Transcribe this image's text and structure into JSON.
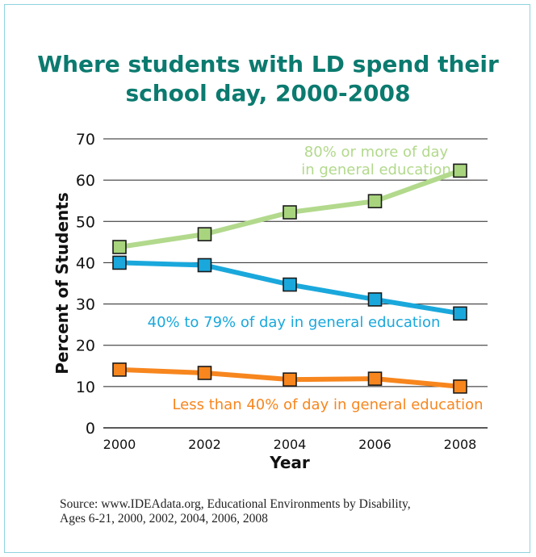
{
  "title_line1": "Where students with LD spend their",
  "title_line2": "school day, 2000-2008",
  "source_line1": "Source: www.IDEAdata.org, Educational Environments by Disability,",
  "source_line2": "Ages 6-21, 2000, 2002, 2004, 2006, 2008",
  "chart_data": {
    "type": "line",
    "xlabel": "Year",
    "ylabel": "Percent of Students",
    "x": [
      2000,
      2002,
      2004,
      2006,
      2008
    ],
    "ylim": [
      0,
      70
    ],
    "yticks": [
      0,
      10,
      20,
      30,
      40,
      50,
      60,
      70
    ],
    "grid": true,
    "series": [
      {
        "name": "80% or more of day in general education",
        "label_lines": [
          "80% or more of day",
          "in general education"
        ],
        "values": [
          43.8,
          46.9,
          52.2,
          54.9,
          62.3
        ],
        "line_color": "#b2d98c",
        "marker_color": "#a8d47e"
      },
      {
        "name": "40% to 79% of day in general education",
        "label_lines": [
          "40% to 79% of day in general education"
        ],
        "values": [
          40.0,
          39.4,
          34.7,
          31.1,
          27.7
        ],
        "line_color": "#1aa8dc",
        "marker_color": "#1aa8dc"
      },
      {
        "name": "Less than 40% of day in general education",
        "label_lines": [
          "Less than 40% of day in general education"
        ],
        "values": [
          14.1,
          13.3,
          11.7,
          11.9,
          10.0
        ],
        "line_color": "#f7861e",
        "marker_color": "#f7861e"
      }
    ]
  }
}
